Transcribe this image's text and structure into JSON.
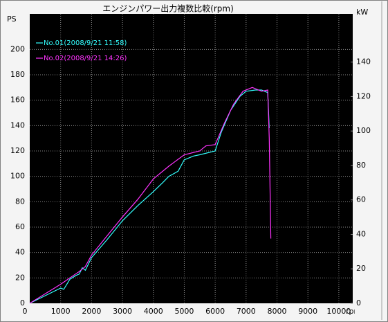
{
  "chart_data": {
    "type": "line",
    "title": "エンジンパワー出力複数比較(rpm)",
    "y_label": "PS",
    "y2_label": "kW",
    "x_label": "rpm",
    "xlim": [
      0,
      10450
    ],
    "xticks": [
      0,
      1000,
      2000,
      3000,
      4000,
      5000,
      6000,
      7000,
      8000,
      9000,
      10000
    ],
    "ylim": [
      0,
      228
    ],
    "yticks": [
      0,
      20,
      40,
      60,
      80,
      100,
      120,
      140,
      160,
      180,
      200
    ],
    "y2lim": [
      0,
      168
    ],
    "y2ticks": [
      0,
      20,
      40,
      60,
      80,
      100,
      120,
      140
    ],
    "grid": true,
    "legend": "upper left",
    "series": [
      {
        "name": "No.01(2008/9/21  11:58)",
        "color": "#33ffff",
        "x": [
          0,
          1000,
          1100,
          1300,
          1500,
          1600,
          1700,
          1800,
          2000,
          2500,
          3000,
          3500,
          4000,
          4300,
          4500,
          4800,
          5000,
          5300,
          5500,
          6000,
          6200,
          6500,
          6800,
          7000,
          7300,
          7500,
          7700,
          7750
        ],
        "values": [
          0,
          12,
          11,
          19,
          22,
          23,
          28,
          26,
          36,
          50,
          65,
          77,
          88,
          95,
          100,
          104,
          113,
          116,
          117,
          120,
          135,
          152,
          163,
          167,
          168,
          168,
          166,
          138
        ]
      },
      {
        "name": "No.02(2008/9/21  14:26)",
        "color": "#ff33ff",
        "x": [
          0,
          1000,
          1300,
          1600,
          1800,
          2000,
          2500,
          3000,
          3500,
          4000,
          4500,
          5000,
          5500,
          5700,
          6000,
          6300,
          6600,
          6900,
          7200,
          7500,
          7700,
          7750,
          7800
        ],
        "values": [
          0,
          15,
          20,
          25,
          29,
          38,
          53,
          68,
          82,
          98,
          108,
          117,
          120,
          124,
          125,
          142,
          157,
          167,
          170,
          167,
          168,
          130,
          51
        ]
      }
    ]
  }
}
